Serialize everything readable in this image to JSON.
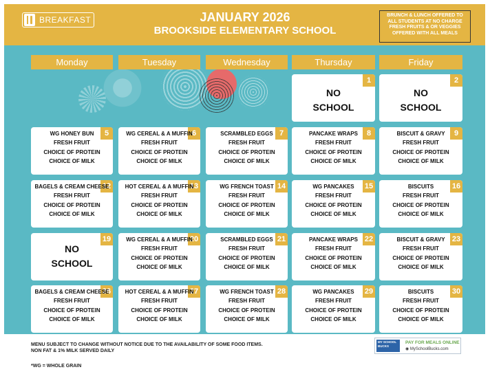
{
  "header": {
    "logo_label": "BREAKFAST",
    "title": "JANUARY 2026",
    "school": "BROOKSIDE ELEMENTARY SCHOOL",
    "note": "BRUNCH & LUNCH OFFERED TO ALL STUDENTS AT NO CHARGE FRESH FRUITS & OR VEGGIES OFFERED WITH ALL MEALS"
  },
  "days": [
    "Monday",
    "Tuesday",
    "Wednesday",
    "Thursday",
    "Friday"
  ],
  "cells": [
    {
      "day": "1",
      "no_school": [
        "NO",
        "SCHOOL"
      ]
    },
    {
      "day": "2",
      "no_school": [
        "NO",
        "SCHOOL"
      ]
    },
    {
      "day": "5",
      "lines": [
        "WG HONEY BUN",
        "FRESH FRUIT",
        "CHOICE OF PROTEIN",
        "CHOICE OF MILK"
      ]
    },
    {
      "day": "6",
      "lines": [
        "WG CEREAL & A MUFFIN",
        "FRESH FRUIT",
        "CHOICE OF PROTEIN",
        "CHOICE OF MILK"
      ]
    },
    {
      "day": "7",
      "lines": [
        "SCRAMBLED EGGS",
        "FRESH FRUIT",
        "CHOICE OF PROTEIN",
        "CHOICE OF MILK"
      ]
    },
    {
      "day": "8",
      "lines": [
        "PANCAKE WRAPS",
        "FRESH FRUIT",
        "CHOICE OF PROTEIN",
        "CHOICE OF MILK"
      ]
    },
    {
      "day": "9",
      "lines": [
        "BISCUIT & GRAVY",
        "FRESH FRUIT",
        "CHOICE OF PROTEIN",
        "CHOICE OF MILK"
      ]
    },
    {
      "day": "12",
      "lines": [
        "BAGELS & CREAM CHEESE",
        "FRESH FRUIT",
        "CHOICE OF PROTEIN",
        "CHOICE OF MILK"
      ]
    },
    {
      "day": "13",
      "lines": [
        "HOT CEREAL & A MUFFIN",
        "FRESH FRUIT",
        "CHOICE OF PROTEIN",
        "CHOICE OF MILK"
      ]
    },
    {
      "day": "14",
      "lines": [
        "WG FRENCH TOAST",
        "FRESH FRUIT",
        "CHOICE OF PROTEIN",
        "CHOICE OF MILK"
      ]
    },
    {
      "day": "15",
      "lines": [
        "WG PANCAKES",
        "FRESH FRUIT",
        "CHOICE OF PROTEIN",
        "CHOICE OF MILK"
      ]
    },
    {
      "day": "16",
      "lines": [
        "BISCUITS",
        "FRESH FRUIT",
        "CHOICE OF PROTEIN",
        "CHOICE OF MILK"
      ]
    },
    {
      "day": "19",
      "no_school": [
        "NO",
        "SCHOOL"
      ]
    },
    {
      "day": "20",
      "lines": [
        "WG CEREAL & A MUFFIN",
        "FRESH FRUIT",
        "CHOICE OF PROTEIN",
        "CHOICE OF MILK"
      ]
    },
    {
      "day": "21",
      "lines": [
        "SCRAMBLED EGGS",
        "FRESH FRUIT",
        "CHOICE OF PROTEIN",
        "CHOICE OF MILK"
      ]
    },
    {
      "day": "22",
      "lines": [
        "PANCAKE WRAPS",
        "FRESH FRUIT",
        "CHOICE OF PROTEIN",
        "CHOICE OF MILK"
      ]
    },
    {
      "day": "23",
      "lines": [
        "BISCUIT & GRAVY",
        "FRESH FRUIT",
        "CHOICE OF PROTEIN",
        "CHOICE OF MILK"
      ]
    },
    {
      "day": "26",
      "lines": [
        "BAGELS & CREAM CHEESE",
        "FRESH FRUIT",
        "CHOICE OF PROTEIN",
        "CHOICE OF MILK"
      ]
    },
    {
      "day": "27",
      "lines": [
        "HOT CEREAL & A MUFFIN",
        "FRESH FRUIT",
        "CHOICE OF PROTEIN",
        "CHOICE OF MILK"
      ]
    },
    {
      "day": "28",
      "lines": [
        "WG FRENCH TOAST",
        "FRESH FRUIT",
        "CHOICE OF PROTEIN",
        "CHOICE OF MILK"
      ]
    },
    {
      "day": "29",
      "lines": [
        "WG PANCAKES",
        "FRESH FRUIT",
        "CHOICE OF PROTEIN",
        "CHOICE OF MILK"
      ]
    },
    {
      "day": "30",
      "lines": [
        "BISCUITS",
        "FRESH FRUIT",
        "CHOICE OF PROTEIN",
        "CHOICE OF MILK"
      ]
    }
  ],
  "footer": {
    "note1": "MENU SUBJECT TO CHANGE WITHOUT NOTICE DUE TO THE AVAILABILITY OF SOME FOOD ITEMS.",
    "note2": "NON FAT & 1% MILK SERVED DAILY",
    "wg_note": "*WG = WHOLE GRAIN",
    "msb_logo": "MY SCHOOL BUCKS",
    "msb_pay": "PAY FOR MEALS ONLINE",
    "msb_url": "MySchoolBucks.com"
  },
  "colors": {
    "gold": "#e4b543",
    "teal": "#5ab9c4"
  }
}
